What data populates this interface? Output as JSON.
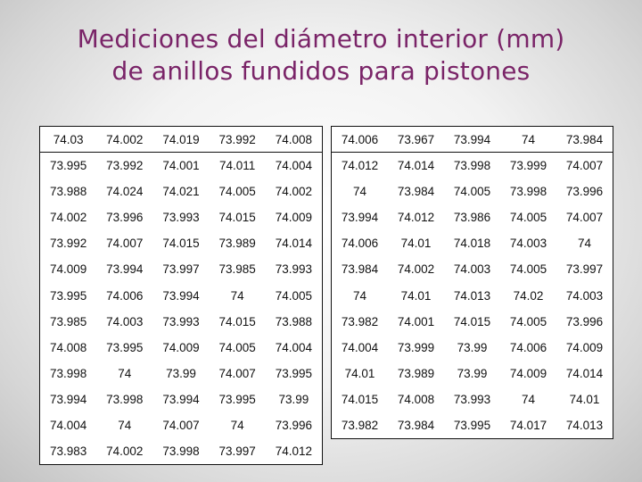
{
  "title": {
    "line1": "Mediciones del diámetro interior (mm)",
    "line2": "de anillos fundidos para pistones"
  },
  "left_table": {
    "rows": [
      [
        "74.03",
        "74.002",
        "74.019",
        "73.992",
        "74.008"
      ],
      [
        "73.995",
        "73.992",
        "74.001",
        "74.011",
        "74.004"
      ],
      [
        "73.988",
        "74.024",
        "74.021",
        "74.005",
        "74.002"
      ],
      [
        "74.002",
        "73.996",
        "73.993",
        "74.015",
        "74.009"
      ],
      [
        "73.992",
        "74.007",
        "74.015",
        "73.989",
        "74.014"
      ],
      [
        "74.009",
        "73.994",
        "73.997",
        "73.985",
        "73.993"
      ],
      [
        "73.995",
        "74.006",
        "73.994",
        "74",
        "74.005"
      ],
      [
        "73.985",
        "74.003",
        "73.993",
        "74.015",
        "73.988"
      ],
      [
        "74.008",
        "73.995",
        "74.009",
        "74.005",
        "74.004"
      ],
      [
        "73.998",
        "74",
        "73.99",
        "74.007",
        "73.995"
      ],
      [
        "73.994",
        "73.998",
        "73.994",
        "73.995",
        "73.99"
      ],
      [
        "74.004",
        "74",
        "74.007",
        "74",
        "73.996"
      ],
      [
        "73.983",
        "74.002",
        "73.998",
        "73.997",
        "74.012"
      ]
    ]
  },
  "right_table": {
    "rows": [
      [
        "74.006",
        "73.967",
        "73.994",
        "74",
        "73.984"
      ],
      [
        "74.012",
        "74.014",
        "73.998",
        "73.999",
        "74.007"
      ],
      [
        "74",
        "73.984",
        "74.005",
        "73.998",
        "73.996"
      ],
      [
        "73.994",
        "74.012",
        "73.986",
        "74.005",
        "74.007"
      ],
      [
        "74.006",
        "74.01",
        "74.018",
        "74.003",
        "74"
      ],
      [
        "73.984",
        "74.002",
        "74.003",
        "74.005",
        "73.997"
      ],
      [
        "74",
        "74.01",
        "74.013",
        "74.02",
        "74.003"
      ],
      [
        "73.982",
        "74.001",
        "74.015",
        "74.005",
        "73.996"
      ],
      [
        "74.004",
        "73.999",
        "73.99",
        "74.006",
        "74.009"
      ],
      [
        "74.01",
        "73.989",
        "73.99",
        "74.009",
        "74.014"
      ],
      [
        "74.015",
        "74.008",
        "73.993",
        "74",
        "74.01"
      ],
      [
        "73.982",
        "73.984",
        "73.995",
        "74.017",
        "74.013"
      ]
    ]
  }
}
